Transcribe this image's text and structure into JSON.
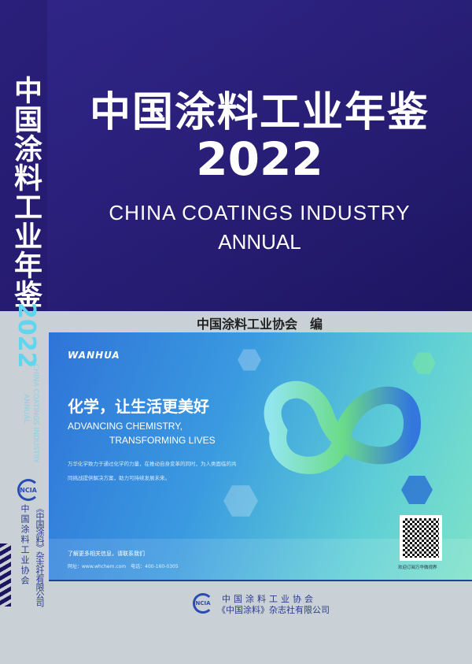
{
  "cover": {
    "title_cn": "中国涂料工业年鉴",
    "year": "2022",
    "title_en_line1": "CHINA COATINGS INDUSTRY",
    "title_en_line2": "ANNUAL",
    "editor": "中国涂料工业协会　编"
  },
  "spine": {
    "title_cn": "中国涂料工业年鉴",
    "year": "2022",
    "title_en_line1": "CHINA COATINGS INDUSTRY",
    "title_en_line2": "ANNUAL",
    "logo": "NCIA",
    "publisher1": "中国涂料工业协会",
    "publisher2": "《中国涂料》杂志社有限公司"
  },
  "ad": {
    "brand": "WANHUA",
    "headline_cn": "化学，让生活更美好",
    "headline_en1": "ADVANCING CHEMISTRY,",
    "headline_en2": "TRANSFORMING LIVES",
    "body": "万华化学致力于通过化学的力量，在推动自身变革的同时，为人类面临的共同挑战提供解决方案，助力可持续发展未来。",
    "contact_cta": "了解更多相关信息，请联系我们",
    "contact_info": "网址：www.whchem.com　电话：400-160-0305",
    "qr_caption": "欢迎订阅万华微视界",
    "colors": {
      "blue": "#2f74d8",
      "green": "#7ee2c8"
    }
  },
  "publisher": {
    "logo": "NCIA",
    "line1": "中国涂料工业协会",
    "line2": "《中国涂料》杂志社有限公司"
  },
  "colors": {
    "navy": "#241a6e",
    "gray": "#c9d0d6",
    "accent_cyan": "#5fd6ee"
  }
}
